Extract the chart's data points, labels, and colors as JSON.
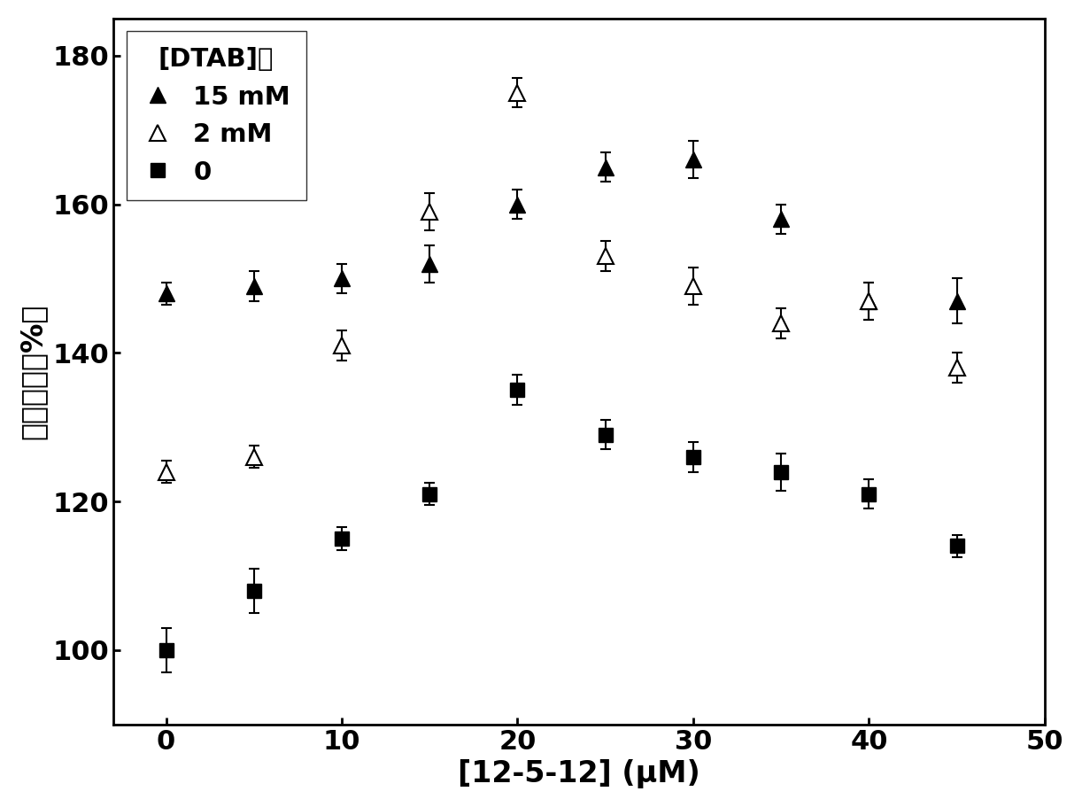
{
  "x_values": [
    0,
    5,
    10,
    15,
    20,
    25,
    30,
    35,
    40,
    45
  ],
  "series_15mM": {
    "y": [
      148,
      149,
      150,
      152,
      160,
      165,
      166,
      158,
      147,
      147
    ],
    "yerr": [
      1.5,
      2.0,
      2.0,
      2.5,
      2.0,
      2.0,
      2.5,
      2.0,
      2.5,
      3.0
    ],
    "label": "15 mM"
  },
  "series_2mM": {
    "y": [
      124,
      126,
      141,
      159,
      175,
      153,
      149,
      144,
      147,
      138
    ],
    "yerr": [
      1.5,
      1.5,
      2.0,
      2.5,
      2.0,
      2.0,
      2.5,
      2.0,
      2.5,
      2.0
    ],
    "label": "2 mM"
  },
  "series_0": {
    "y": [
      100,
      108,
      115,
      121,
      135,
      129,
      126,
      124,
      121,
      114
    ],
    "yerr": [
      3.0,
      3.0,
      1.5,
      1.5,
      2.0,
      2.0,
      2.0,
      2.5,
      2.0,
      1.5
    ],
    "label": "0"
  },
  "xlabel": "[12-5-12] (μM)",
  "ylabel": "相对活性（%）",
  "xlim": [
    -3,
    50
  ],
  "ylim": [
    90,
    185
  ],
  "yticks": [
    100,
    120,
    140,
    160,
    180
  ],
  "xticks": [
    0,
    10,
    20,
    30,
    40,
    50
  ],
  "legend_title": "[DTAB]：",
  "markersize": 13,
  "tick_fontsize": 22,
  "label_fontsize": 24,
  "legend_fontsize": 21,
  "background_color": "#ffffff"
}
